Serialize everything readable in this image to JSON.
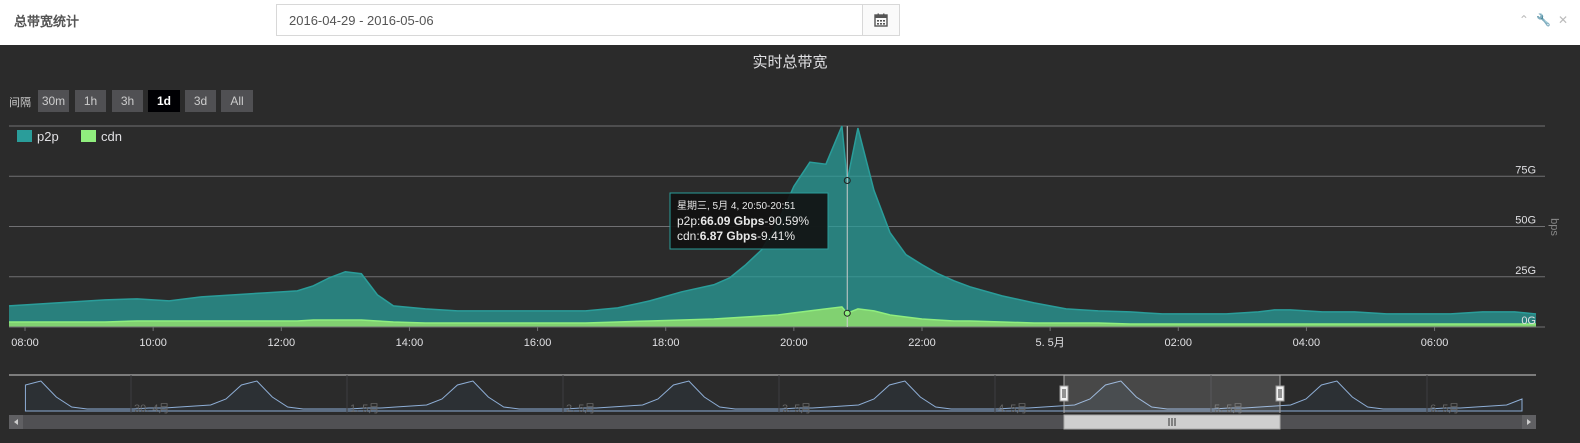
{
  "header": {
    "title": "总带宽统计",
    "date_range": "2016-04-29 - 2016-05-06",
    "calendar_icon": "calendar-icon",
    "tools": {
      "collapse_icon": "chevron-up-icon",
      "config_icon": "wrench-icon",
      "close_icon": "close-icon"
    }
  },
  "range_selector": {
    "label": "间隔",
    "buttons": [
      {
        "label": "30m",
        "selected": false
      },
      {
        "label": "1h",
        "selected": false
      },
      {
        "label": "3h",
        "selected": false
      },
      {
        "label": "1d",
        "selected": true
      },
      {
        "label": "3d",
        "selected": false
      },
      {
        "label": "All",
        "selected": false
      }
    ]
  },
  "tooltip": {
    "header": "星期三, 5月 4, 20:50-20:51",
    "rows": [
      {
        "series": "p2p",
        "value": "66.09 Gbps",
        "percent": "-90.59%"
      },
      {
        "series": "cdn",
        "value": "6.87 Gbps",
        "percent": "-9.41%"
      }
    ]
  },
  "colors": {
    "background": "#2b2b2b",
    "p2p": "#2a9d9a",
    "cdn": "#90ee7e",
    "grid": "#707073",
    "text": "#e0e0e3"
  },
  "chart_data": {
    "type": "area",
    "stacking": "normal",
    "title": "实时总带宽",
    "ylabel": "bps",
    "ylim": [
      0,
      100
    ],
    "yticks": [
      "0G",
      "25G",
      "50G",
      "75G"
    ],
    "ytick_values": [
      0,
      25,
      50,
      75
    ],
    "x": [
      "07:45",
      "08:15",
      "08:45",
      "09:15",
      "09:45",
      "10:15",
      "10:45",
      "11:15",
      "11:45",
      "12:15",
      "12:30",
      "12:45",
      "13:00",
      "13:15",
      "13:30",
      "13:45",
      "14:15",
      "14:45",
      "15:15",
      "15:45",
      "16:15",
      "16:45",
      "17:15",
      "17:45",
      "18:15",
      "18:45",
      "19:00",
      "19:15",
      "19:30",
      "19:45",
      "20:00",
      "20:15",
      "20:30",
      "20:45",
      "20:50",
      "21:00",
      "21:15",
      "21:30",
      "21:45",
      "22:00",
      "22:15",
      "22:30",
      "22:45",
      "23:15",
      "23:45",
      "00:15",
      "00:45",
      "01:15",
      "01:45",
      "02:15",
      "02:45",
      "03:15",
      "03:30",
      "03:45",
      "04:15",
      "04:45",
      "05:15",
      "05:45",
      "06:15",
      "06:45",
      "07:15",
      "07:35"
    ],
    "xticks": [
      {
        "label": "08:00",
        "at": "08:00"
      },
      {
        "label": "10:00",
        "at": "10:00"
      },
      {
        "label": "12:00",
        "at": "12:00"
      },
      {
        "label": "14:00",
        "at": "14:00"
      },
      {
        "label": "16:00",
        "at": "16:00"
      },
      {
        "label": "18:00",
        "at": "18:00"
      },
      {
        "label": "20:00",
        "at": "20:00"
      },
      {
        "label": "22:00",
        "at": "22:00"
      },
      {
        "label": "5. 5月",
        "at": "00:00"
      },
      {
        "label": "02:00",
        "at": "02:00"
      },
      {
        "label": "04:00",
        "at": "04:00"
      },
      {
        "label": "06:00",
        "at": "06:00"
      }
    ],
    "series": [
      {
        "name": "p2p",
        "values": [
          8,
          9,
          10,
          11,
          11,
          10,
          12,
          13,
          14,
          15,
          17,
          21,
          24,
          23,
          13,
          8,
          7,
          6,
          6,
          6,
          6,
          6,
          7,
          10,
          14,
          17,
          20,
          26,
          33,
          46,
          63,
          74,
          72,
          90,
          66,
          90,
          60,
          41,
          31,
          27,
          23,
          20,
          17,
          13,
          10,
          7,
          6,
          6,
          5,
          5,
          5,
          6,
          7,
          7,
          6,
          6,
          5,
          5,
          5,
          6,
          6,
          5
        ]
      },
      {
        "name": "cdn",
        "values": [
          2.5,
          2.5,
          2.5,
          2.5,
          3,
          3,
          3,
          3,
          3,
          3,
          3.5,
          3.5,
          3.5,
          3.5,
          3,
          2.5,
          2,
          2,
          2,
          2,
          2,
          2,
          2.5,
          3,
          3.5,
          4,
          4.5,
          5,
          5.5,
          6,
          7,
          8,
          9,
          10,
          6.87,
          9,
          8,
          6,
          5,
          4,
          3.5,
          3,
          3,
          2.5,
          2,
          2,
          2,
          1.5,
          1.5,
          1.5,
          1.5,
          1.5,
          1.5,
          1.5,
          1.5,
          1.5,
          1.5,
          1.5,
          1.5,
          1.5,
          1.5,
          1.5
        ]
      }
    ],
    "navigator": {
      "labels": [
        "30. 4月",
        "1. 5月",
        "2. 5月",
        "3. 5月",
        "4. 5月",
        "5. 5月",
        "6. 5月"
      ],
      "selected_range": [
        "5月 4 07:45",
        "5月 5 07:35"
      ]
    }
  }
}
